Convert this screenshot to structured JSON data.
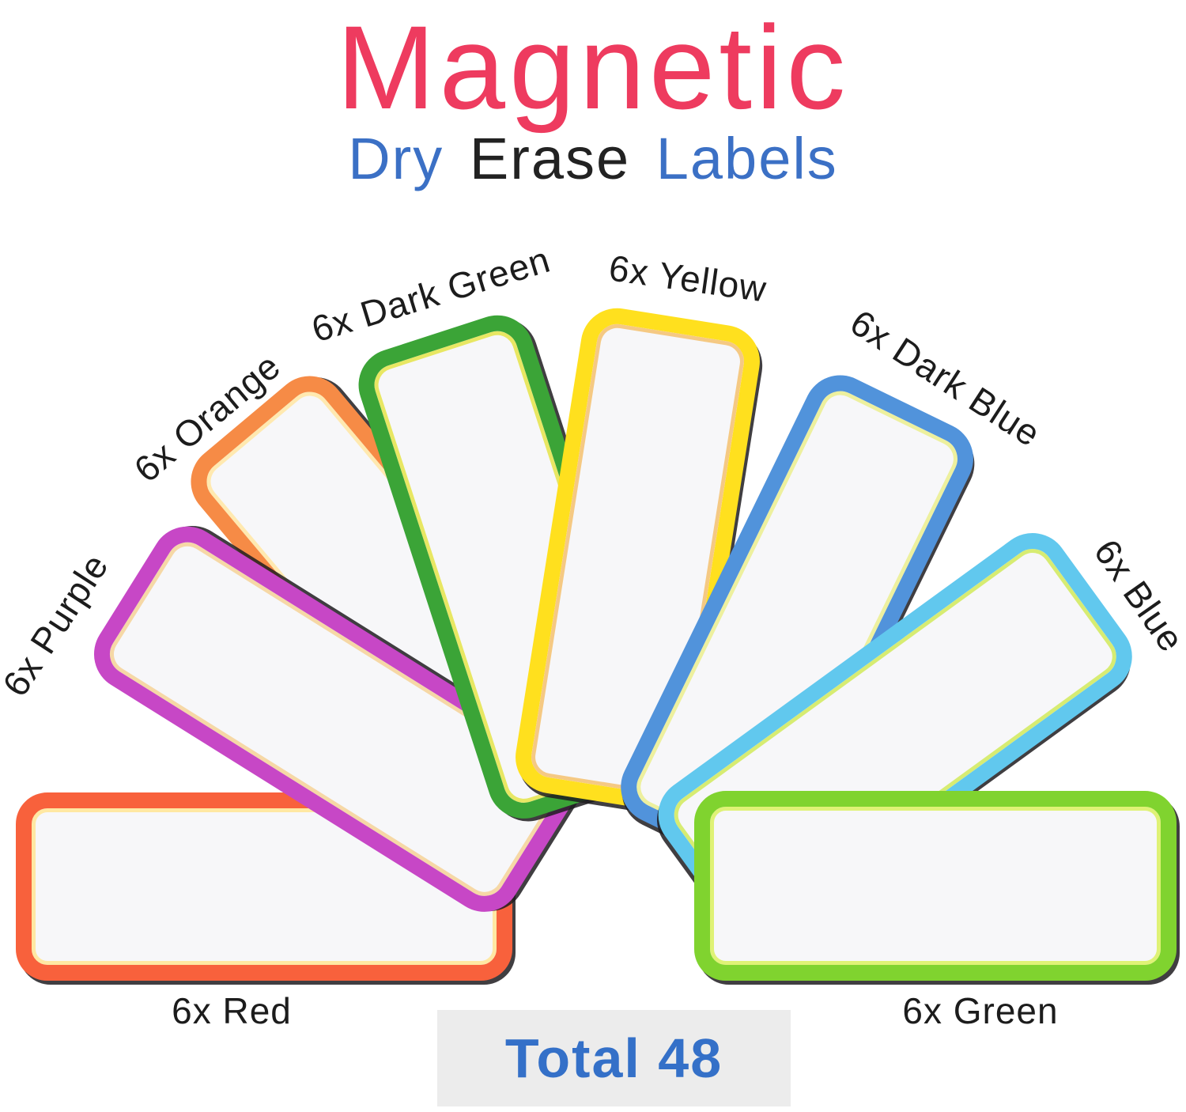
{
  "title": {
    "text": "Magnetic",
    "color": "#EE3B5F"
  },
  "subtitle": {
    "parts": [
      {
        "text": "Dry",
        "color": "#3B70C5"
      },
      {
        "text": "Erase",
        "color": "#222222"
      },
      {
        "text": "Labels",
        "color": "#3B70C5"
      }
    ]
  },
  "labels": [
    {
      "name": "purple",
      "caption": "6x Purple",
      "count": 6,
      "border_color": "#C747C6",
      "inner_line_color": "#F6D8A6"
    },
    {
      "name": "orange",
      "caption": "6x Orange",
      "count": 6,
      "border_color": "#F68B46",
      "inner_line_color": "#FFE9B0"
    },
    {
      "name": "dark-green",
      "caption": "6x Dark Green",
      "count": 6,
      "border_color": "#3BA437",
      "inner_line_color": "#E8E763"
    },
    {
      "name": "yellow",
      "caption": "6x Yellow",
      "count": 6,
      "border_color": "#FFE01E",
      "inner_line_color": "#F5C983"
    },
    {
      "name": "dark-blue",
      "caption": "6x Dark Blue",
      "count": 6,
      "border_color": "#5193DB",
      "inner_line_color": "#EDF09E"
    },
    {
      "name": "blue",
      "caption": "6x Blue",
      "count": 6,
      "border_color": "#61C8EE",
      "inner_line_color": "#D7EC72"
    },
    {
      "name": "red",
      "caption": "6x Red",
      "count": 6,
      "border_color": "#F8613C",
      "inner_line_color": "#FFE8A3"
    },
    {
      "name": "green",
      "caption": "6x Green",
      "count": 6,
      "border_color": "#80D32F",
      "inner_line_color": "#DFF276"
    }
  ],
  "total_badge": {
    "text": "Total 48",
    "text_color": "#3470C8",
    "background": "#ECECEC"
  },
  "card_face_color": "#F7F7F9"
}
